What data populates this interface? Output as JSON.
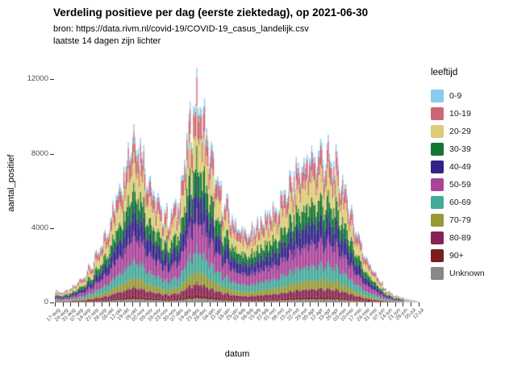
{
  "page": {
    "window": "plot-viewer"
  },
  "chart_data": {
    "type": "bar",
    "stacked": true,
    "title": "Verdeling positieve per dag (eerste ziektedag), op 2021-06-30",
    "subtitle1": "bron: https://data.rivm.nl/covid-19/COVID-19_casus_landelijk.csv",
    "subtitle2": "laatste 14 dagen zijn lichter",
    "xlabel": "datum",
    "ylabel": "aantal_positief",
    "ylim": [
      0,
      12800
    ],
    "yticks": [
      0,
      4000,
      8000,
      12000
    ],
    "grid": false,
    "bar_width_days": 1,
    "lighter_last_days": 14,
    "x_weekly": [
      "17-aug",
      "24-aug",
      "31-aug",
      "07-sep",
      "14-sep",
      "21-sep",
      "28-sep",
      "05-okt",
      "12-okt",
      "19-okt",
      "26-okt",
      "02-nov",
      "09-nov",
      "16-nov",
      "23-nov",
      "30-nov",
      "07-dec",
      "14-dec",
      "21-dec",
      "28-dec",
      "04-jan",
      "11-jan",
      "18-jan",
      "25-jan",
      "01-feb",
      "08-feb",
      "15-feb",
      "22-feb",
      "01-mrt",
      "08-mrt",
      "15-mrt",
      "22-mrt",
      "29-mrt",
      "05-apr",
      "12-apr",
      "19-apr",
      "26-apr",
      "03-mei",
      "10-mei",
      "17-mei",
      "24-mei",
      "31-mei",
      "07-jun",
      "14-jun",
      "21-jun",
      "28-jun",
      "05-jul",
      "12-jul"
    ],
    "weekly_totals": [
      600,
      550,
      700,
      1100,
      1600,
      2200,
      3000,
      4300,
      5800,
      7400,
      9200,
      8500,
      6800,
      5400,
      4800,
      4600,
      5600,
      8200,
      11000,
      10200,
      8000,
      6200,
      5200,
      4400,
      3800,
      3600,
      4000,
      4600,
      4800,
      5200,
      6000,
      6800,
      7400,
      7600,
      8000,
      7800,
      7400,
      6600,
      5200,
      3800,
      2600,
      1800,
      1100,
      600,
      350,
      250,
      150,
      50
    ],
    "age_group_shares": {
      "0-9": 0.04,
      "10-19": 0.12,
      "20-29": 0.17,
      "30-39": 0.13,
      "40-49": 0.14,
      "50-59": 0.15,
      "60-69": 0.1,
      "70-79": 0.06,
      "80-89": 0.05,
      "90+": 0.02,
      "Unknown": 0.02
    },
    "stack_order_bottom_to_top": [
      "Unknown",
      "90+",
      "80-89",
      "70-79",
      "60-69",
      "50-59",
      "40-49",
      "30-39",
      "20-29",
      "10-19",
      "0-9"
    ],
    "legend": {
      "title": "leeftijd",
      "position": "right",
      "entries": [
        {
          "label": "0-9",
          "color": "#88CCEE"
        },
        {
          "label": "10-19",
          "color": "#CC6677"
        },
        {
          "label": "20-29",
          "color": "#DDCC77"
        },
        {
          "label": "30-39",
          "color": "#117733"
        },
        {
          "label": "40-49",
          "color": "#332288"
        },
        {
          "label": "50-59",
          "color": "#AA4499"
        },
        {
          "label": "60-69",
          "color": "#44AA99"
        },
        {
          "label": "70-79",
          "color": "#999933"
        },
        {
          "label": "80-89",
          "color": "#882255"
        },
        {
          "label": "90+",
          "color": "#7C1D1D"
        },
        {
          "label": "Unknown",
          "color": "#888888"
        }
      ]
    }
  }
}
